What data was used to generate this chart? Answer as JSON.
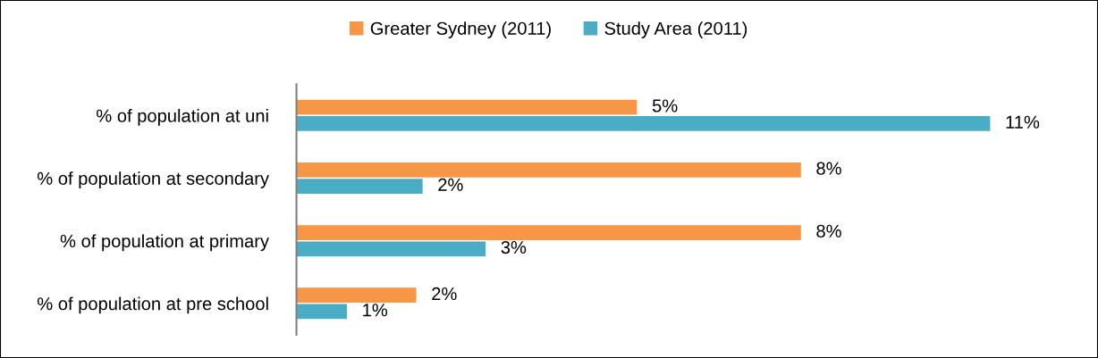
{
  "chart_data": {
    "type": "bar",
    "orientation": "horizontal",
    "categories": [
      "% of population at uni",
      "% of population at secondary",
      "% of population at primary",
      "% of population at pre school"
    ],
    "series": [
      {
        "name": "Greater Sydney (2011)",
        "color": "#f79646",
        "values": [
          5.4,
          8,
          8,
          1.9
        ],
        "value_labels": [
          "5%",
          "8%",
          "8%",
          "2%"
        ]
      },
      {
        "name": "Study Area (2011)",
        "color": "#4bacc6",
        "values": [
          11,
          2,
          3,
          0.8
        ],
        "value_labels": [
          "11%",
          "2%",
          "3%",
          "1%"
        ]
      }
    ],
    "legend": "top"
  }
}
